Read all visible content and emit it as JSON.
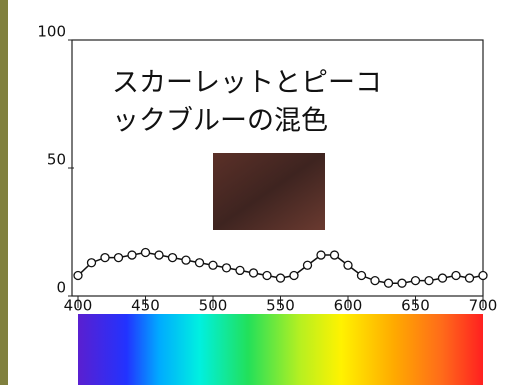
{
  "chart_data": {
    "type": "line",
    "title": [
      "スカーレットとピーコ",
      "ックブルーの混色"
    ],
    "x": [
      400,
      410,
      420,
      430,
      440,
      450,
      460,
      470,
      480,
      490,
      500,
      510,
      520,
      530,
      540,
      550,
      560,
      570,
      580,
      590,
      600,
      610,
      620,
      630,
      640,
      650,
      660,
      670,
      680,
      690,
      700
    ],
    "series": [
      {
        "color": "#111111",
        "values": [
          8,
          13,
          15,
          15,
          16,
          17,
          16,
          15,
          14,
          13,
          12,
          11,
          10,
          9,
          8,
          7,
          8,
          12,
          16,
          16,
          12,
          8,
          6,
          5,
          5,
          6,
          6,
          7,
          8,
          7,
          8
        ]
      }
    ],
    "xlim": [
      400,
      700
    ],
    "xticks": [
      400,
      450,
      500,
      550,
      600,
      650,
      700
    ],
    "ylim": [
      0,
      100
    ],
    "yticks": [
      0,
      50,
      100
    ]
  }
}
